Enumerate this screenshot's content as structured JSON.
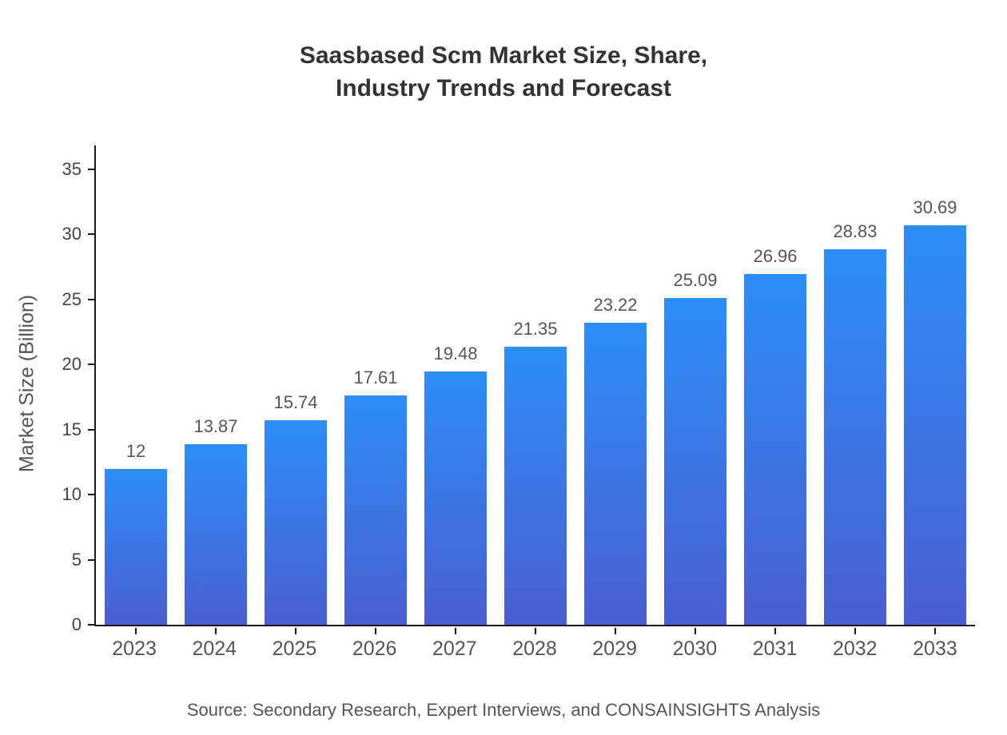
{
  "chart_data": {
    "type": "bar",
    "title": "Saasbased Scm Market Size, Share,\nIndustry Trends and Forecast",
    "ylabel": "Market Size (Billion)",
    "xlabel": "",
    "categories": [
      "2023",
      "2024",
      "2025",
      "2026",
      "2027",
      "2028",
      "2029",
      "2030",
      "2031",
      "2032",
      "2033"
    ],
    "values": [
      12,
      13.87,
      15.74,
      17.61,
      19.48,
      21.35,
      23.22,
      25.09,
      26.96,
      28.83,
      30.69
    ],
    "yticks": [
      0,
      5,
      10,
      15,
      20,
      25,
      30,
      35
    ],
    "ylim": [
      0,
      35
    ],
    "grid": false,
    "legend_position": "none",
    "source": "Source: Secondary Research, Expert Interviews, and CONSAINSIGHTS Analysis",
    "colors": {
      "bar_top": "#2E8EF7",
      "bar_bottom": "#4A5ED1",
      "axis": "#1a1a1a",
      "title_text": "#333333",
      "label_text": "#555555"
    }
  }
}
